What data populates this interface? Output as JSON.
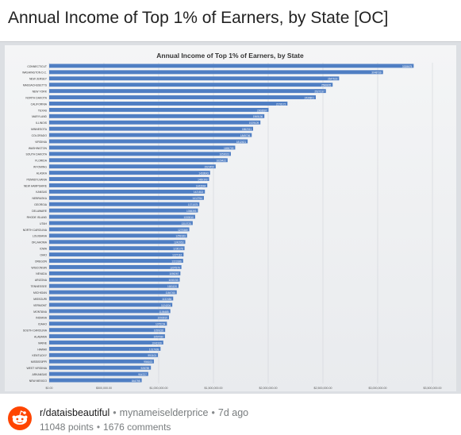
{
  "post": {
    "title": "Annual Income of Top 1% of Earners, by State [OC]"
  },
  "footer": {
    "subreddit": "r/dataisbeautiful",
    "author": "mynameiselderprice",
    "age": "7d ago",
    "points": "11048 points",
    "comments": "1676 comments",
    "icon": "reddit-alien-icon",
    "brand_color": "#ff4500"
  },
  "chart_data": {
    "type": "bar",
    "orientation": "horizontal",
    "title": "Annual Income of Top 1% of Earners, by State",
    "bar_color": "#4f7ec3",
    "grid": true,
    "xlim": [
      0,
      3500000
    ],
    "xticks": [
      "$0.00",
      "$500,000.00",
      "$1,000,000.00",
      "$1,500,000.00",
      "$2,000,000.00",
      "$2,500,000.00",
      "$3,000,000.00",
      "$3,500,000.00"
    ],
    "categories": [
      "CONNECTICUT",
      "WASHINGTON D.C.",
      "NEW JERSEY",
      "MASSACHUSETTS",
      "NEW YORK",
      "NORTH DAKOTA",
      "CALIFORNIA",
      "TEXAS",
      "MARYLAND",
      "ILLINOIS",
      "MINNESOTA",
      "COLORADO",
      "VIRGINIA",
      "WASHINGTON",
      "SOUTH DAKOTA",
      "FLORIDA",
      "WYOMING",
      "ALASKA",
      "PENNSYLVANIA",
      "NEW HAMPSHIRE",
      "KANSAS",
      "NEBRASKA",
      "GEORGIA",
      "DELAWARE",
      "RHODE ISLAND",
      "UTAH",
      "NORTH CAROLINA",
      "LOUISIANA",
      "OKLAHOMA",
      "IOWA",
      "OHIO",
      "OREGON",
      "WISCONSIN",
      "NEVADA",
      "ARIZONA",
      "TENNESSEE",
      "MICHIGAN",
      "MISSOURI",
      "VERMONT",
      "MONTANA",
      "INDIANA",
      "IDAHO",
      "SOUTH CAROLINA",
      "ALABAMA",
      "MAINE",
      "HAWAII",
      "KENTUCKY",
      "MISSISSIPPI",
      "WEST VIRGINIA",
      "ARKANSAS",
      "NEW MEXICO"
    ],
    "values": [
      3328675,
      3048739,
      2647633,
      2588805,
      2527237,
      2434801,
      2176172,
      2003507,
      1965136,
      1929109,
      1862311,
      1849706,
      1812421,
      1698709,
      1659023,
      1629422,
      1520459,
      1469643,
      1460393,
      1443944,
      1421813,
      1412764,
      1371575,
      1358393,
      1333010,
      1310720,
      1279369,
      1259183,
      1242953,
      1236178,
      1227116,
      1223186,
      1207579,
      1198267,
      1192233,
      1181120,
      1164760,
      1132484,
      1124204,
      1106485,
      1093910,
      1075154,
      1059220,
      1057080,
      1041939,
      1017009,
      993103,
      956103,
      928789,
      904727,
      844798
    ],
    "labels": [
      "3328675",
      "3048739",
      "2647633",
      "2588805",
      "2527237",
      "2434801",
      "2176172",
      "2003507",
      "1965136",
      "1929109",
      "1862311",
      "1849706",
      "1812421",
      "1698709",
      "1659023",
      "1629422",
      "1520459",
      "1469643",
      "1460393",
      "1443944",
      "1421813",
      "1412764",
      "1371575",
      "1358393",
      "1333010",
      "1310720",
      "1279369",
      "1259183",
      "1242953",
      "1236178",
      "1227116",
      "1223186",
      "1207579",
      "1198267",
      "1192233",
      "1181120",
      "1164760",
      "1132484",
      "1124204",
      "1106485",
      "1093910",
      "1075154",
      "1059220",
      "1057080",
      "1041939",
      "1017009",
      "993103",
      "956103",
      "928789",
      "904727",
      "844798"
    ]
  }
}
